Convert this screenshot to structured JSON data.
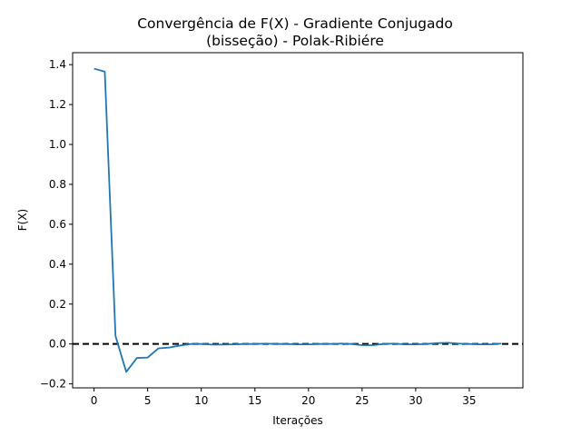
{
  "chart_data": {
    "type": "line",
    "title_line1": "Convergência de F(X) - Gradiente Conjugado",
    "title_line2": "(bisseção) - Polak-Ribiére",
    "xlabel": "Iterações",
    "ylabel": "F(X)",
    "xlim": [
      -2,
      40
    ],
    "ylim": [
      -0.22,
      1.46
    ],
    "xticks": [
      0,
      5,
      10,
      15,
      20,
      25,
      30,
      35
    ],
    "yticks": [
      -0.2,
      0.0,
      0.2,
      0.4,
      0.6,
      0.8,
      1.0,
      1.2,
      1.4
    ],
    "ytick_labels": [
      "−0.2",
      "0.0",
      "0.2",
      "0.4",
      "0.6",
      "0.8",
      "1.0",
      "1.2",
      "1.4"
    ],
    "grid": false,
    "series": [
      {
        "color": "#1f77b4",
        "x": [
          0,
          1,
          2,
          3,
          4,
          5,
          6,
          7,
          8,
          9,
          10,
          11,
          12,
          13,
          14,
          15,
          16,
          17,
          18,
          19,
          20,
          21,
          22,
          23,
          24,
          25,
          26,
          27,
          28,
          29,
          30,
          31,
          32,
          33,
          34,
          35,
          36,
          37,
          38
        ],
        "values": [
          1.38,
          1.365,
          0.04,
          -0.14,
          -0.07,
          -0.068,
          -0.022,
          -0.018,
          -0.008,
          0.0,
          0.0,
          -0.003,
          -0.003,
          -0.002,
          0.0,
          0.0,
          0.002,
          0.0,
          0.0,
          -0.002,
          -0.002,
          0.0,
          0.0,
          0.002,
          0.0,
          -0.006,
          -0.006,
          0.0,
          0.002,
          -0.002,
          -0.002,
          0.0,
          0.004,
          0.006,
          0.002,
          0.0,
          -0.002,
          -0.002,
          0.002
        ]
      }
    ],
    "reference_line": {
      "y": 0.0,
      "color": "#000000",
      "style": "dashed"
    }
  }
}
